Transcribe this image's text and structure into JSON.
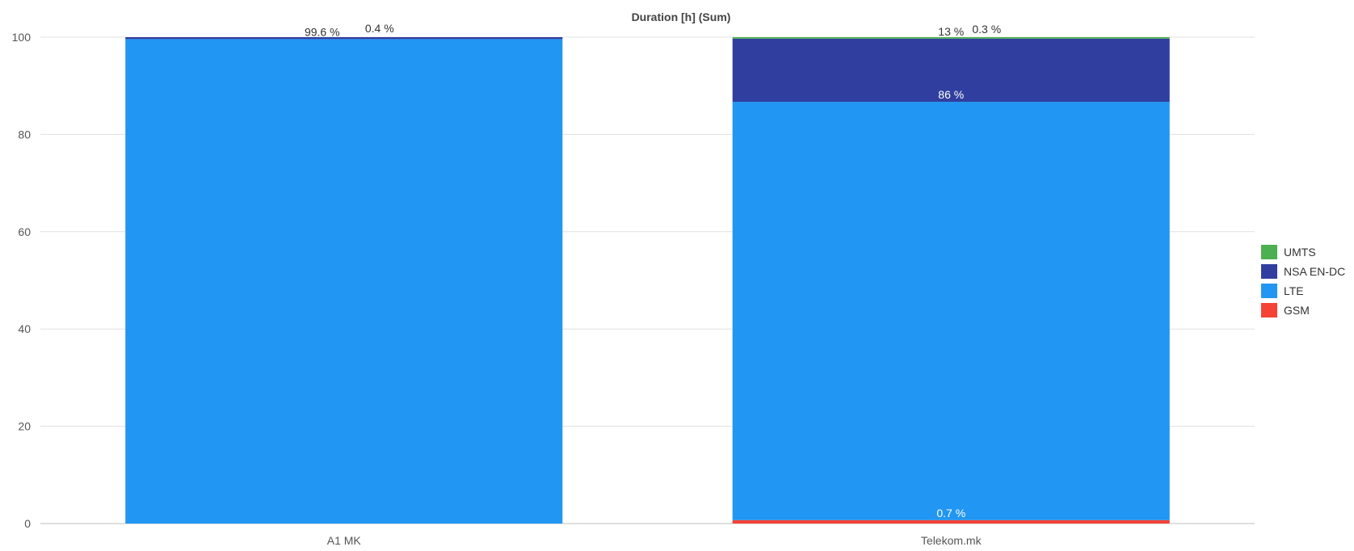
{
  "chart_data": {
    "type": "bar",
    "stacked": true,
    "title": "Duration [h] (Sum)",
    "xlabel": "",
    "ylabel": "",
    "ylim": [
      0,
      100
    ],
    "yticks": [
      "0",
      "20",
      "40",
      "60",
      "80",
      "100"
    ],
    "grid": true,
    "legend_position": "right",
    "categories": [
      "A1 MK",
      "Telekom.mk"
    ],
    "series": [
      {
        "name": "GSM",
        "color": "#f44336",
        "values": [
          0,
          0.7
        ],
        "labels": [
          "",
          "0.7 %"
        ]
      },
      {
        "name": "LTE",
        "color": "#2196f3",
        "values": [
          99.6,
          86
        ],
        "labels": [
          "99.6 %",
          "86 %"
        ]
      },
      {
        "name": "NSA EN-DC",
        "color": "#303f9f",
        "values": [
          0.4,
          13
        ],
        "labels": [
          "0.4 %",
          "13 %"
        ]
      },
      {
        "name": "UMTS",
        "color": "#4caf50",
        "values": [
          0,
          0.3
        ],
        "labels": [
          "",
          "0.3 %"
        ]
      }
    ],
    "legend_order": [
      "UMTS",
      "NSA EN-DC",
      "LTE",
      "GSM"
    ]
  }
}
